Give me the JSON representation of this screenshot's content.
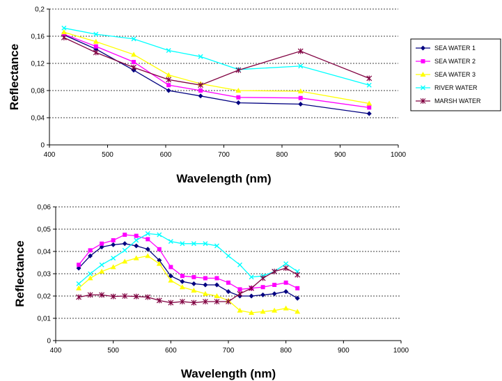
{
  "chart_data": [
    {
      "type": "line",
      "title": "",
      "xlabel": "Wavelength (nm)",
      "ylabel": "Reflectance",
      "xlim": [
        400,
        1000
      ],
      "ylim": [
        0,
        0.2
      ],
      "xticks": [
        "400",
        "500",
        "600",
        "700",
        "800",
        "900",
        "1000"
      ],
      "yticks": [
        "0",
        "0,04",
        "0,08",
        "0,12",
        "0,16",
        "0,2"
      ],
      "grid": "horizontal dashed",
      "legend": "right",
      "series": [
        {
          "name": "SEA WATER 1",
          "color": "#000080",
          "marker": "diamond",
          "x": [
            425,
            480,
            545,
            605,
            660,
            725,
            832,
            950
          ],
          "y": [
            0.162,
            0.141,
            0.11,
            0.08,
            0.072,
            0.062,
            0.06,
            0.046
          ]
        },
        {
          "name": "SEA WATER 2",
          "color": "#ff00ff",
          "marker": "square",
          "x": [
            425,
            480,
            545,
            605,
            660,
            725,
            832,
            950
          ],
          "y": [
            0.163,
            0.145,
            0.122,
            0.088,
            0.08,
            0.07,
            0.069,
            0.055
          ]
        },
        {
          "name": "SEA WATER 3",
          "color": "#ffff00",
          "marker": "triangle",
          "x": [
            425,
            480,
            545,
            605,
            660,
            725,
            832,
            950
          ],
          "y": [
            0.166,
            0.152,
            0.133,
            0.103,
            0.09,
            0.08,
            0.079,
            0.061
          ]
        },
        {
          "name": "RIVER WATER",
          "color": "#00ffff",
          "marker": "x",
          "x": [
            425,
            480,
            545,
            605,
            660,
            725,
            832,
            950
          ],
          "y": [
            0.172,
            0.163,
            0.156,
            0.139,
            0.13,
            0.111,
            0.116,
            0.088
          ]
        },
        {
          "name": "MARSH WATER",
          "color": "#800040",
          "marker": "star",
          "x": [
            425,
            480,
            545,
            605,
            660,
            725,
            832,
            950
          ],
          "y": [
            0.158,
            0.136,
            0.114,
            0.096,
            0.088,
            0.11,
            0.138,
            0.098
          ]
        }
      ]
    },
    {
      "type": "line",
      "title": "",
      "xlabel": "Wavelength (nm)",
      "ylabel": "Reflectance",
      "xlim": [
        400,
        1000
      ],
      "ylim": [
        0,
        0.06
      ],
      "xticks": [
        "400",
        "500",
        "600",
        "700",
        "800",
        "900",
        "1000"
      ],
      "yticks": [
        "0",
        "0,01",
        "0,02",
        "0,03",
        "0,04",
        "0,05",
        "0,06"
      ],
      "grid": "horizontal dashed",
      "legend": "none",
      "series": [
        {
          "color": "#000080",
          "marker": "diamond",
          "x": [
            440,
            460,
            480,
            500,
            520,
            540,
            560,
            580,
            600,
            620,
            640,
            660,
            680,
            700,
            720,
            740,
            760,
            780,
            800,
            820
          ],
          "y": [
            0.0325,
            0.038,
            0.042,
            0.043,
            0.0435,
            0.0425,
            0.041,
            0.036,
            0.029,
            0.0265,
            0.0255,
            0.025,
            0.025,
            0.022,
            0.02,
            0.02,
            0.0205,
            0.021,
            0.022,
            0.019
          ]
        },
        {
          "color": "#ff00ff",
          "marker": "square",
          "x": [
            440,
            460,
            480,
            500,
            520,
            540,
            560,
            580,
            600,
            620,
            640,
            660,
            680,
            700,
            720,
            740,
            760,
            780,
            800,
            820
          ],
          "y": [
            0.034,
            0.0405,
            0.0435,
            0.045,
            0.0475,
            0.047,
            0.0455,
            0.041,
            0.033,
            0.029,
            0.0285,
            0.028,
            0.028,
            0.026,
            0.023,
            0.0235,
            0.024,
            0.025,
            0.026,
            0.0235
          ]
        },
        {
          "color": "#ffff00",
          "marker": "triangle",
          "x": [
            440,
            460,
            480,
            500,
            520,
            540,
            560,
            580,
            600,
            620,
            640,
            660,
            680,
            700,
            720,
            740,
            760,
            780,
            800,
            820
          ],
          "y": [
            0.0235,
            0.028,
            0.031,
            0.033,
            0.0355,
            0.037,
            0.038,
            0.0345,
            0.027,
            0.024,
            0.0225,
            0.021,
            0.02,
            0.018,
            0.0135,
            0.0125,
            0.013,
            0.0135,
            0.0145,
            0.013
          ]
        },
        {
          "color": "#00ffff",
          "marker": "x",
          "x": [
            440,
            460,
            480,
            500,
            520,
            540,
            560,
            580,
            600,
            620,
            640,
            660,
            680,
            700,
            720,
            740,
            760,
            780,
            800,
            820
          ],
          "y": [
            0.0255,
            0.03,
            0.034,
            0.037,
            0.0405,
            0.045,
            0.048,
            0.0475,
            0.0445,
            0.0435,
            0.0435,
            0.0435,
            0.0425,
            0.038,
            0.034,
            0.0285,
            0.029,
            0.031,
            0.0345,
            0.031
          ]
        },
        {
          "color": "#800040",
          "marker": "star",
          "x": [
            440,
            460,
            480,
            500,
            520,
            540,
            560,
            580,
            600,
            620,
            640,
            660,
            680,
            700,
            720,
            740,
            760,
            780,
            800,
            820
          ],
          "y": [
            0.0195,
            0.0205,
            0.0205,
            0.0198,
            0.02,
            0.0198,
            0.0195,
            0.018,
            0.017,
            0.0175,
            0.017,
            0.0175,
            0.0175,
            0.0175,
            0.021,
            0.0235,
            0.028,
            0.031,
            0.0325,
            0.0295
          ]
        }
      ]
    }
  ]
}
